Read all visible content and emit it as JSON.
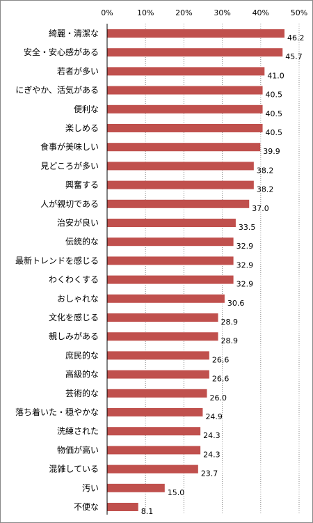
{
  "chart_data": {
    "type": "bar",
    "orientation": "horizontal",
    "title": "",
    "xlabel": "",
    "ylabel": "",
    "xlim": [
      0,
      50
    ],
    "ticks": [
      "0%",
      "10%",
      "20%",
      "30%",
      "40%",
      "50%"
    ],
    "tick_values": [
      0,
      10,
      20,
      30,
      40,
      50
    ],
    "grid": "vertical dotted",
    "bar_color": "#C0504D",
    "categories": [
      "綺麗・清潔な",
      "安全・安心感がある",
      "若者が多い",
      "にぎやか、活気がある",
      "便利な",
      "楽しめる",
      "食事が美味しい",
      "見どころが多い",
      "興奮する",
      "人が親切である",
      "治安が良い",
      "伝統的な",
      "最新トレンドを感じる",
      "わくわくする",
      "おしゃれな",
      "文化を感じる",
      "親しみがある",
      "庶民的な",
      "高級的な",
      "芸術的な",
      "落ち着いた・穏やかな",
      "洗練された",
      "物価が高い",
      "混雑している",
      "汚い",
      "不便な"
    ],
    "values": [
      46.2,
      45.7,
      41.0,
      40.5,
      40.5,
      40.5,
      39.9,
      38.2,
      38.2,
      37.0,
      33.5,
      32.9,
      32.9,
      32.9,
      30.6,
      28.9,
      28.9,
      26.6,
      26.6,
      26.0,
      24.9,
      24.3,
      24.3,
      23.7,
      15.0,
      8.1
    ],
    "value_labels": [
      "46.2",
      "45.7",
      "41.0",
      "40.5",
      "40.5",
      "40.5",
      "39.9",
      "38.2",
      "38.2",
      "37.0",
      "33.5",
      "32.9",
      "32.9",
      "32.9",
      "30.6",
      "28.9",
      "28.9",
      "26.6",
      "26.6",
      "26.0",
      "24.9",
      "24.3",
      "24.3",
      "23.7",
      "15.0",
      "8.1"
    ]
  }
}
